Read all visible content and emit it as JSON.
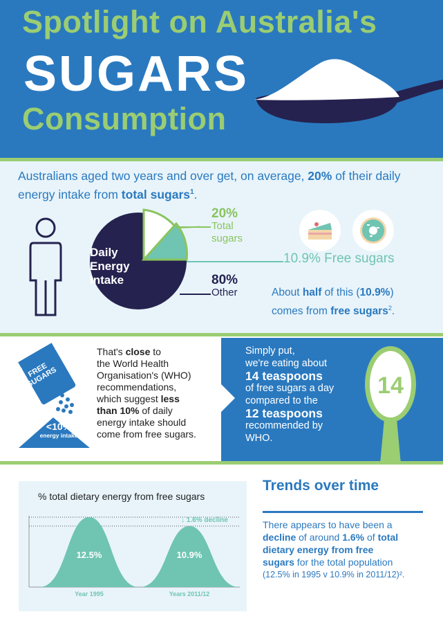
{
  "header": {
    "title_line1": "Spotlight on Australia's",
    "title_line2": "SUGARS",
    "title_line3": "Consumption"
  },
  "intro": {
    "prefix": "Australians aged two years and over get, on average, ",
    "percent": "20%",
    "middle": " of their daily energy intake from ",
    "bold": "total sugars",
    "footnote": "1",
    "suffix": "."
  },
  "pie": {
    "center_label_line1": "Daily",
    "center_label_line2": "Energy",
    "center_label_line3": "Intake",
    "total_percent": "20%",
    "total_label_line1": "Total",
    "total_label_line2": "sugars",
    "other_percent": "80%",
    "other_label": "Other",
    "free_label": "10.9% Free sugars",
    "half_text_prefix": "About ",
    "half_bold": "half",
    "half_mid": " of this (",
    "half_value": "10.9%",
    "half_mid2": ")",
    "half_line2_prefix": "comes from ",
    "half_line2_bold": "free sugars",
    "half_footnote": "2",
    "half_suffix": "."
  },
  "chart_data": {
    "type": "area",
    "title": "% total dietary energy from free sugars",
    "categories": [
      "Year 1995",
      "Years 2011/12"
    ],
    "values": [
      12.5,
      10.9
    ],
    "value_labels": [
      "12.5%",
      "10.9%"
    ],
    "annotation": "1.6% decline",
    "xlabel": "",
    "ylabel": ""
  },
  "who": {
    "bag_label_line1": "FREE",
    "bag_label_line2": "SUGARS",
    "pile_percent": "<10%",
    "pile_label": "energy intake",
    "t1": "That's ",
    "t1_bold": "close",
    "t1_end": " to",
    "t2": "the World Health",
    "t3": "Organisation's (WHO)",
    "t4": "recommendations,",
    "t5_pre": "which suggest ",
    "t5_bold": "less",
    "t6_bold": "than 10%",
    "t6_end": " of daily",
    "t7": "energy intake should",
    "t8": "come from free sugars."
  },
  "teaspoons": {
    "l1": "Simply put,",
    "l2": "we're eating about",
    "l3": "14 teaspoons",
    "l4": "of free sugars a day",
    "l5": "compared to the",
    "l6": "12 teaspoons",
    "l7": "recommended by",
    "l8": "WHO.",
    "spoon_number": "14"
  },
  "trends": {
    "title": "Trends over time",
    "p1": "There appears to have been a",
    "p2_bold": "decline",
    "p2_mid": " of around ",
    "p2_bold2": "1.6%",
    "p2_mid2": " of ",
    "p2_bold3": "total",
    "p3_bold": "dietary energy from free",
    "p4_bold": "sugars",
    "p4_end": " for the total population",
    "p5": "(12.5% in 1995 v 10.9% in 2011/12)²."
  },
  "colors": {
    "blue": "#2a79bf",
    "green": "#9bcd72",
    "teal": "#6fc4b2",
    "navy": "#25224f",
    "light_bg": "#e8f4fa"
  }
}
